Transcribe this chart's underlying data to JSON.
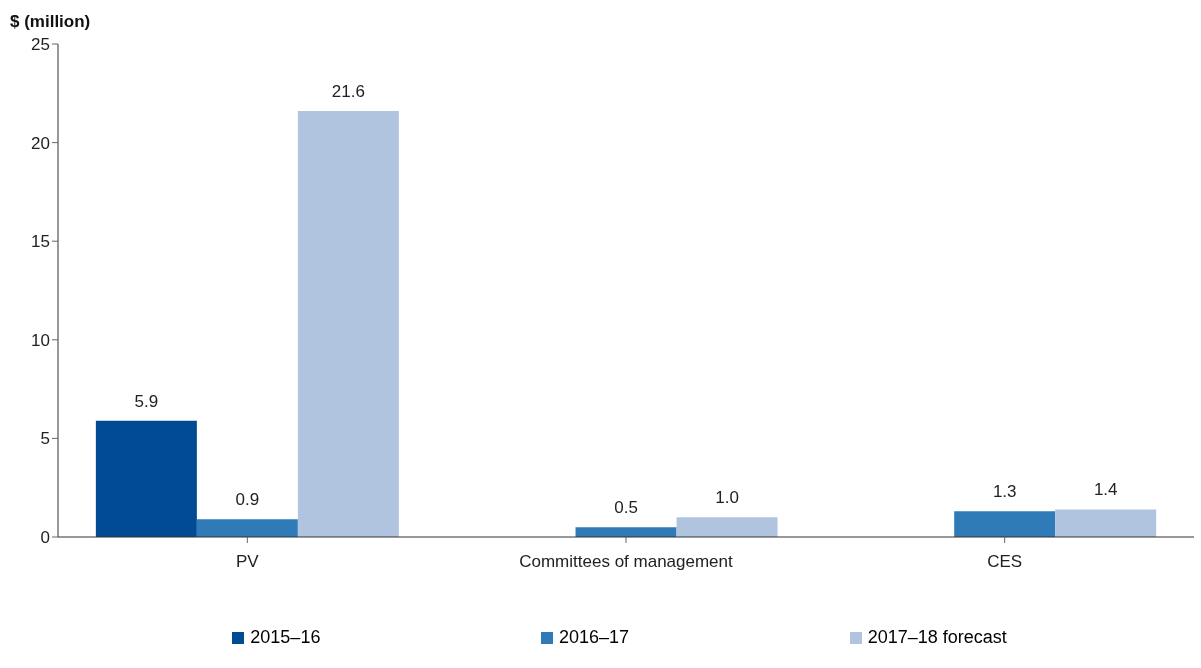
{
  "chart_data": {
    "type": "bar",
    "ylabel": "$ (million)",
    "categories": [
      "PV",
      "Committees of management",
      "CES"
    ],
    "series": [
      {
        "name": "2015–16",
        "color": "#004b93",
        "values": [
          5.9,
          null,
          null
        ],
        "value_labels": [
          "5.9",
          null,
          null
        ]
      },
      {
        "name": "2016–17",
        "color": "#2e7bb8",
        "values": [
          0.9,
          0.5,
          1.3
        ],
        "value_labels": [
          "0.9",
          "0.5",
          "1.3"
        ]
      },
      {
        "name": "2017–18 forecast",
        "color": "#b0c4e0",
        "values": [
          21.6,
          1.0,
          1.4
        ],
        "value_labels": [
          "21.6",
          "1.0",
          "1.4"
        ]
      }
    ],
    "ylim": [
      0,
      25
    ],
    "yticks": [
      0,
      5,
      10,
      15,
      20,
      25
    ],
    "grid": false,
    "legend": "bottom"
  }
}
